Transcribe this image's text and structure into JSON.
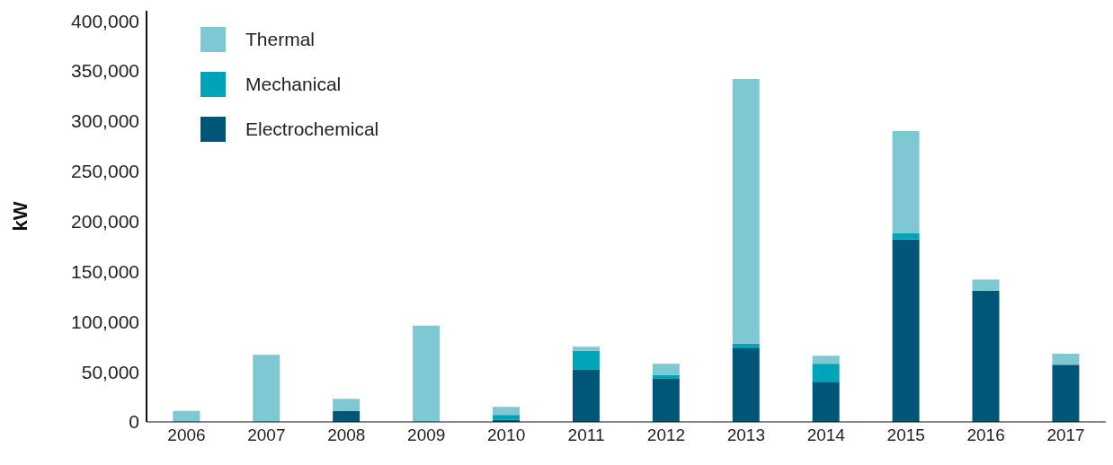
{
  "chart_data": {
    "type": "bar",
    "stacked": true,
    "ylabel": "kW",
    "categories": [
      "2006",
      "2007",
      "2008",
      "2009",
      "2010",
      "2011",
      "2012",
      "2013",
      "2014",
      "2015",
      "2016",
      "2017"
    ],
    "series": [
      {
        "name": "Electrochemical",
        "color": "#005677",
        "values": [
          0,
          0,
          11000,
          0,
          2000,
          52000,
          43000,
          74000,
          40000,
          182000,
          131000,
          57000
        ]
      },
      {
        "name": "Mechanical",
        "color": "#00a3b8",
        "values": [
          0,
          0,
          0,
          0,
          5000,
          19000,
          4000,
          4000,
          18000,
          6000,
          0,
          0
        ]
      },
      {
        "name": "Thermal",
        "color": "#7ec8d3",
        "values": [
          11000,
          67000,
          12000,
          96000,
          8000,
          4000,
          11000,
          264000,
          8000,
          102000,
          11000,
          11000
        ]
      }
    ],
    "ylim": [
      0,
      410000
    ],
    "yticks": [
      0,
      {
        "value": 50000,
        "label": "50,000"
      },
      {
        "value": 100000,
        "label": "100,000"
      },
      {
        "value": 150000,
        "label": "150,000"
      },
      {
        "value": 200000,
        "label": "200,000"
      },
      {
        "value": 250000,
        "label": "250,000"
      },
      {
        "value": 300000,
        "label": "300,000"
      },
      {
        "value": 350000,
        "label": "350,000"
      },
      {
        "value": 400000,
        "label": "400,000"
      }
    ],
    "grid": false,
    "legend": "top left"
  }
}
